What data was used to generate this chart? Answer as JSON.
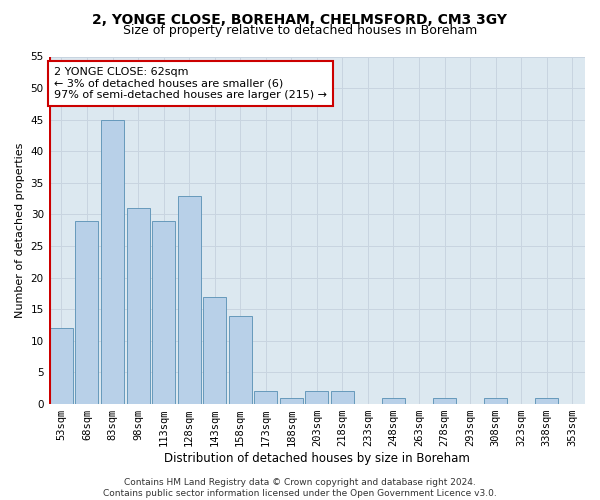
{
  "title1": "2, YONGE CLOSE, BOREHAM, CHELMSFORD, CM3 3GY",
  "title2": "Size of property relative to detached houses in Boreham",
  "xlabel": "Distribution of detached houses by size in Boreham",
  "ylabel": "Number of detached properties",
  "categories": [
    "53sqm",
    "68sqm",
    "83sqm",
    "98sqm",
    "113sqm",
    "128sqm",
    "143sqm",
    "158sqm",
    "173sqm",
    "188sqm",
    "203sqm",
    "218sqm",
    "233sqm",
    "248sqm",
    "263sqm",
    "278sqm",
    "293sqm",
    "308sqm",
    "323sqm",
    "338sqm",
    "353sqm"
  ],
  "values": [
    12,
    29,
    45,
    31,
    29,
    33,
    17,
    14,
    2,
    1,
    2,
    2,
    0,
    1,
    0,
    1,
    0,
    1,
    0,
    1,
    0
  ],
  "bar_color": "#b8d0e8",
  "bar_edge_color": "#6699bb",
  "highlight_color": "#cc0000",
  "annotation_line1": "2 YONGE CLOSE: 62sqm",
  "annotation_line2": "← 3% of detached houses are smaller (6)",
  "annotation_line3": "97% of semi-detached houses are larger (215) →",
  "annotation_box_color": "#ffffff",
  "annotation_box_edge_color": "#cc0000",
  "ylim": [
    0,
    55
  ],
  "yticks": [
    0,
    5,
    10,
    15,
    20,
    25,
    30,
    35,
    40,
    45,
    50,
    55
  ],
  "grid_color": "#c8d4e0",
  "bg_color": "#dce8f0",
  "footnote": "Contains HM Land Registry data © Crown copyright and database right 2024.\nContains public sector information licensed under the Open Government Licence v3.0.",
  "title1_fontsize": 10,
  "title2_fontsize": 9,
  "xlabel_fontsize": 8.5,
  "ylabel_fontsize": 8,
  "tick_fontsize": 7.5,
  "annotation_fontsize": 8,
  "footnote_fontsize": 6.5
}
